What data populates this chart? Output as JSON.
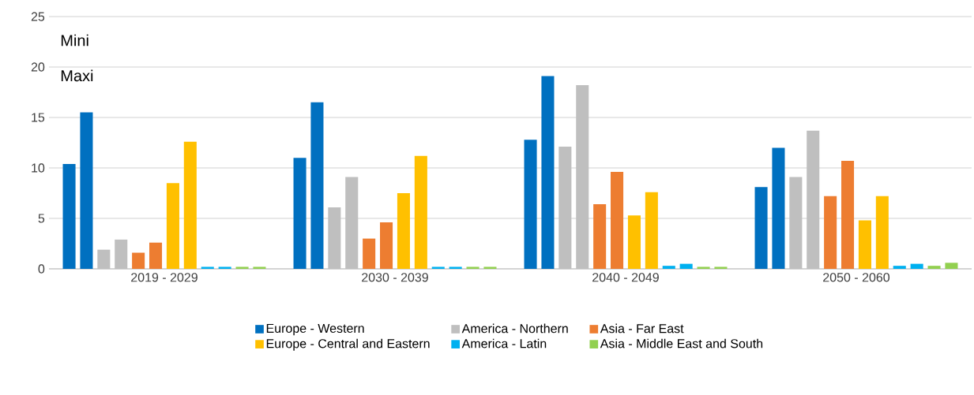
{
  "chart_data": {
    "type": "bar",
    "categories": [
      "2019 - 2029",
      "2030 - 2039",
      "2040 - 2049",
      "2050 - 2060"
    ],
    "series": [
      {
        "name": "Europe - Western",
        "color": "#0070c0",
        "values": [
          10.4,
          11.0,
          12.8,
          8.1
        ]
      },
      {
        "color": "#0070c0",
        "values": [
          15.5,
          16.5,
          19.1,
          12.0
        ]
      },
      {
        "name": "America - Northern",
        "color": "#bfbfbf",
        "values": [
          1.9,
          6.1,
          12.1,
          9.1
        ]
      },
      {
        "color": "#bfbfbf",
        "values": [
          2.9,
          9.1,
          18.2,
          13.7
        ]
      },
      {
        "name": "Asia - Far East",
        "color": "#ed7d31",
        "values": [
          1.6,
          3.0,
          6.4,
          7.2
        ]
      },
      {
        "color": "#ed7d31",
        "values": [
          2.6,
          4.6,
          9.6,
          10.7
        ]
      },
      {
        "name": "Europe - Central and Eastern",
        "color": "#ffc000",
        "values": [
          8.5,
          7.5,
          5.3,
          4.8
        ]
      },
      {
        "color": "#ffc000",
        "values": [
          12.6,
          11.2,
          7.6,
          7.2
        ]
      },
      {
        "name": "America - Latin",
        "color": "#00b0f0",
        "values": [
          0.2,
          0.2,
          0.3,
          0.3
        ]
      },
      {
        "color": "#00b0f0",
        "values": [
          0.2,
          0.2,
          0.5,
          0.5
        ]
      },
      {
        "name": "Asia - Middle East and South",
        "color": "#92d050",
        "values": [
          0.2,
          0.2,
          0.2,
          0.3
        ]
      },
      {
        "color": "#92d050",
        "values": [
          0.2,
          0.2,
          0.2,
          0.6
        ]
      }
    ],
    "ylim": [
      0,
      25
    ],
    "yticks": [
      0,
      5,
      10,
      15,
      20,
      25
    ],
    "grid": "y",
    "legend": "bottom",
    "annotations": [
      "Mini",
      "Maxi"
    ]
  }
}
